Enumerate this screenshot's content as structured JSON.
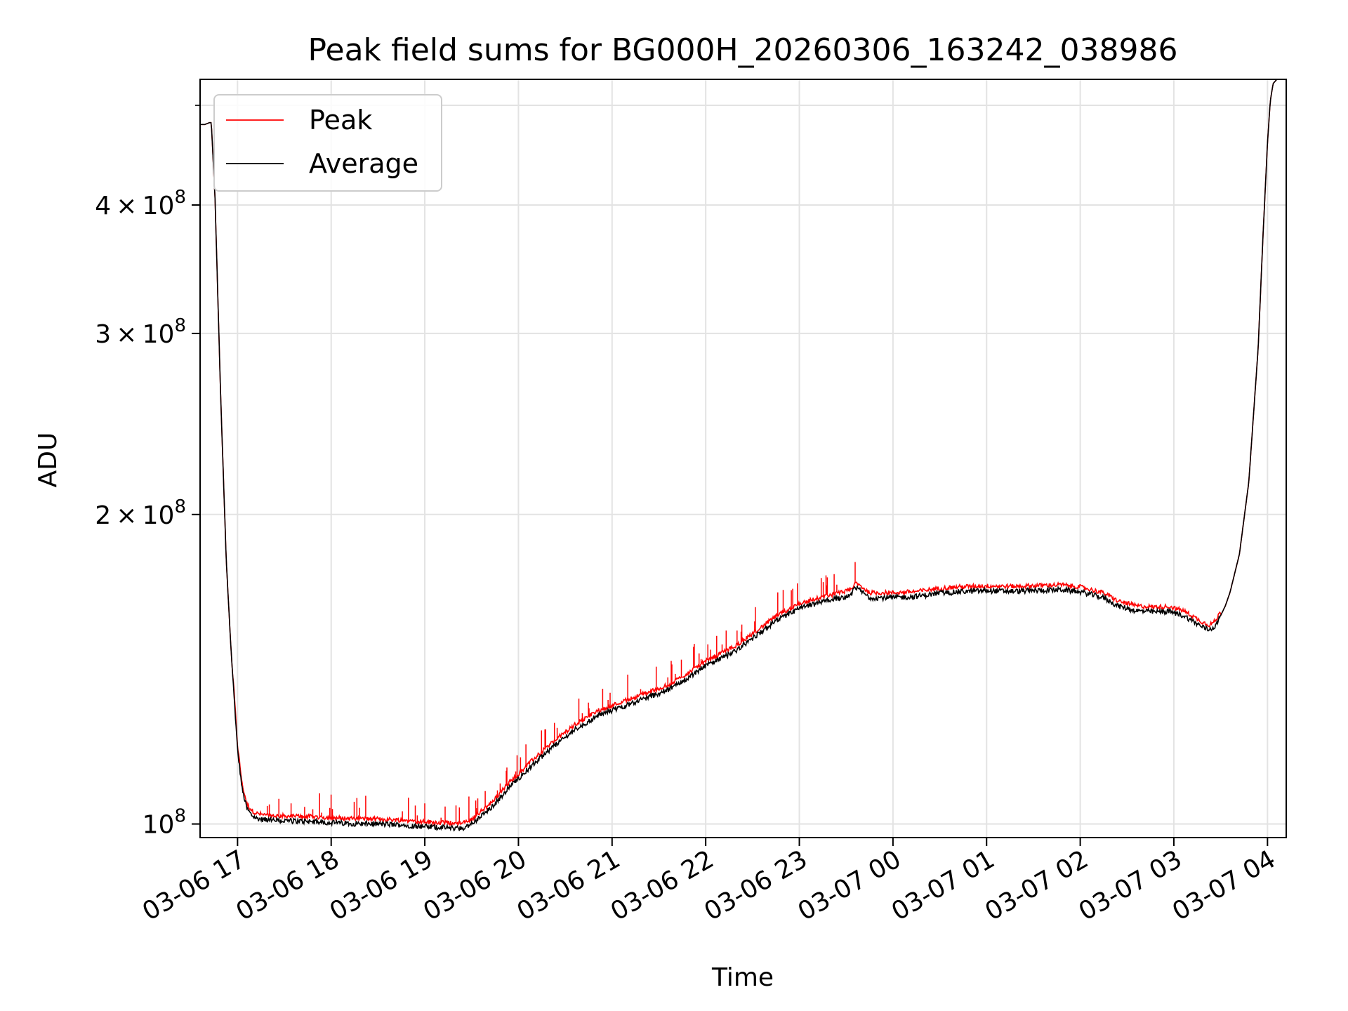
{
  "chart_data": {
    "type": "line",
    "title": "Peak field sums for BG000H_20260306_163242_038986",
    "xlabel": "Time",
    "ylabel": "ADU",
    "yscale": "log",
    "xlim_hours": [
      16.6,
      28.2
    ],
    "ylim": [
      97000000,
      530000000
    ],
    "x_tick_labels": [
      "03-06 17",
      "03-06 18",
      "03-06 19",
      "03-06 20",
      "03-06 21",
      "03-06 22",
      "03-06 23",
      "03-07 00",
      "03-07 01",
      "03-07 02",
      "03-07 03",
      "03-07 04"
    ],
    "x_tick_hours": [
      17,
      18,
      19,
      20,
      21,
      22,
      23,
      24,
      25,
      26,
      27,
      28
    ],
    "y_ticks": [
      {
        "value": 100000000,
        "mantissa": "",
        "exponent": "8"
      },
      {
        "value": 200000000,
        "mantissa": "2",
        "exponent": "8"
      },
      {
        "value": 300000000,
        "mantissa": "3",
        "exponent": "8"
      },
      {
        "value": 400000000,
        "mantissa": "4",
        "exponent": "8"
      }
    ],
    "y_minor_ticks": [
      500000000
    ],
    "grid": true,
    "legend_position": "top-left",
    "series": [
      {
        "name": "Peak",
        "color": "#ff0000"
      },
      {
        "name": "Average",
        "color": "#000000"
      }
    ],
    "average_points": {
      "hours": [
        16.6,
        16.65,
        16.7,
        16.72,
        16.76,
        16.82,
        16.88,
        16.93,
        16.97,
        17.0,
        17.05,
        17.1,
        17.15,
        17.2,
        17.27,
        17.35,
        17.5,
        17.75,
        18.0,
        18.25,
        18.5,
        18.75,
        19.0,
        19.2,
        19.4,
        19.5,
        19.7,
        19.9,
        20.1,
        20.35,
        20.6,
        20.85,
        21.0,
        21.2,
        21.4,
        21.6,
        21.8,
        22.0,
        22.3,
        22.5,
        22.75,
        23.0,
        23.25,
        23.4,
        23.55,
        23.6,
        23.75,
        24.0,
        24.25,
        24.5,
        24.75,
        25.0,
        25.3,
        25.6,
        25.8,
        26.0,
        26.25,
        26.4,
        26.6,
        26.8,
        26.95,
        27.1,
        27.2,
        27.3,
        27.38,
        27.45,
        27.55,
        27.6,
        27.7,
        27.8,
        27.9,
        27.95,
        28.0,
        28.03,
        28.06,
        28.1,
        28.15,
        28.2
      ],
      "values": [
        479000000,
        479000000,
        481000000,
        481000000,
        405000000,
        260000000,
        180000000,
        148000000,
        130000000,
        118000000,
        108000000,
        103500000,
        102000000,
        101300000,
        101000000,
        100800000,
        100700000,
        100600000,
        100300000,
        100100000,
        100000000,
        99800000,
        99400000,
        99200000,
        99000000,
        100000000,
        103500000,
        108500000,
        113000000,
        118500000,
        123500000,
        127500000,
        129000000,
        131000000,
        133000000,
        135000000,
        138500000,
        142500000,
        147000000,
        151500000,
        157500000,
        162000000,
        164500000,
        165700000,
        167000000,
        170000000,
        166000000,
        166000000,
        166500000,
        167700000,
        168300000,
        168600000,
        168400000,
        168800000,
        169000000,
        168200000,
        166000000,
        163000000,
        161200000,
        160800000,
        161000000,
        159500000,
        157600000,
        155500000,
        154500000,
        156000000,
        163000000,
        168000000,
        183000000,
        215000000,
        290000000,
        370000000,
        460000000,
        505000000,
        525000000,
        530000000,
        530000000,
        530000000
      ]
    }
  }
}
